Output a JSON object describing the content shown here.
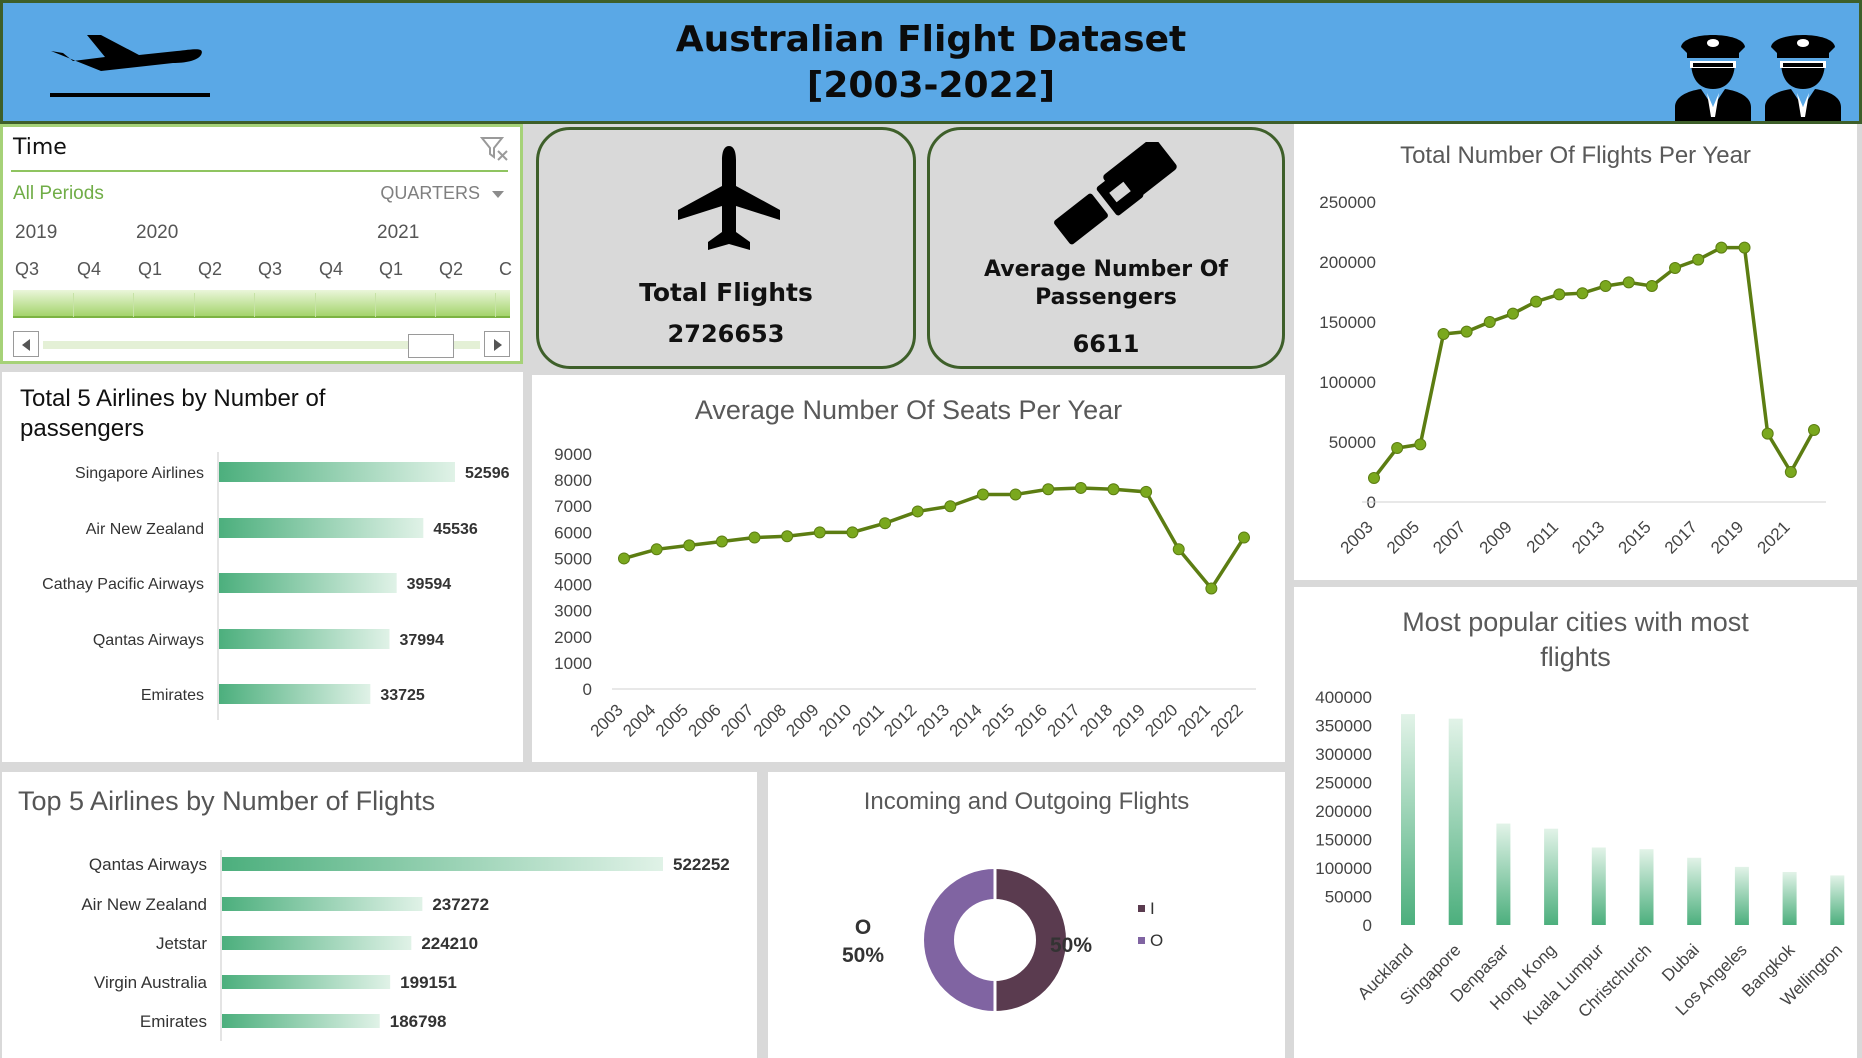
{
  "header": {
    "title_line1": "Australian Flight Dataset",
    "title_line2": "[2003-2022]",
    "plane_icon": "airplane-departure-icon",
    "pilot_icon": "pilot-icon"
  },
  "slicer": {
    "title": "Time",
    "all_periods": "All Periods",
    "level": "QUARTERS",
    "years": [
      "2019",
      "2020",
      "2021"
    ],
    "quarters": [
      "Q3",
      "Q4",
      "Q1",
      "Q2",
      "Q3",
      "Q4",
      "Q1",
      "Q2",
      "C"
    ]
  },
  "kpis": {
    "total_flights_label": "Total Flights",
    "total_flights_value": "2726653",
    "avg_passengers_label_line1": "Average Number Of",
    "avg_passengers_label_line2": "Passengers",
    "avg_passengers_value": "6611",
    "colors": {
      "card": "#d9d9d9",
      "border": "#3e5f2a"
    }
  },
  "chart_data": [
    {
      "id": "flights-per-year",
      "type": "line",
      "title": "Total Number Of Flights Per Year",
      "x": [
        "2003",
        "2004",
        "2005",
        "2006",
        "2007",
        "2008",
        "2009",
        "2010",
        "2011",
        "2012",
        "2013",
        "2014",
        "2015",
        "2016",
        "2017",
        "2018",
        "2019",
        "2020",
        "2021",
        "2022"
      ],
      "x_tick_labels": [
        "2003",
        "2005",
        "2007",
        "2009",
        "2011",
        "2013",
        "2015",
        "2017",
        "2019",
        "2021"
      ],
      "values": [
        20000,
        45000,
        48000,
        140000,
        142000,
        150000,
        157000,
        167000,
        173000,
        174000,
        180000,
        183000,
        180000,
        195000,
        202000,
        212000,
        212000,
        57000,
        25000,
        60000
      ],
      "ylim": [
        0,
        250000
      ],
      "yticks": [
        0,
        50000,
        100000,
        150000,
        200000,
        250000
      ],
      "ytick_labels": [
        "0",
        "50000",
        "100000",
        "150000",
        "200000",
        "250000"
      ],
      "color": "#5c7d12"
    },
    {
      "id": "avg-seats-per-year",
      "type": "line",
      "title": "Average Number Of Seats Per Year",
      "x": [
        "2003",
        "2004",
        "2005",
        "2006",
        "2007",
        "2008",
        "2009",
        "2010",
        "2011",
        "2012",
        "2013",
        "2014",
        "2015",
        "2016",
        "2017",
        "2018",
        "2019",
        "2020",
        "2021",
        "2022"
      ],
      "values": [
        5000,
        5350,
        5500,
        5650,
        5800,
        5850,
        6000,
        6000,
        6350,
        6800,
        7000,
        7450,
        7450,
        7650,
        7700,
        7650,
        7550,
        5350,
        3850,
        5800
      ],
      "ylim": [
        0,
        9000
      ],
      "yticks": [
        0,
        1000,
        2000,
        3000,
        4000,
        5000,
        6000,
        7000,
        8000,
        9000
      ],
      "ytick_labels": [
        "0",
        "1000",
        "2000",
        "3000",
        "4000",
        "5000",
        "6000",
        "7000",
        "8000",
        "9000"
      ],
      "color": "#5c7d12"
    },
    {
      "id": "top5-airlines-passengers",
      "type": "bar",
      "orientation": "horizontal",
      "title": "Total 5 Airlines by Number of passengers",
      "title_line1": "Total 5 Airlines by Number of",
      "title_line2": "passengers",
      "categories": [
        "Singapore Airlines",
        "Air New Zealand",
        "Cathay Pacific Airways",
        "Qantas Airways",
        "Emirates"
      ],
      "values": [
        52596,
        45536,
        39594,
        37994,
        33725
      ],
      "value_labels": [
        "52596",
        "45536",
        "39594",
        "37994",
        "33725"
      ],
      "color": "#4caf7d"
    },
    {
      "id": "top5-airlines-flights",
      "type": "bar",
      "orientation": "horizontal",
      "title": "Top 5 Airlines by Number of Flights",
      "categories": [
        "Qantas Airways",
        "Air New Zealand",
        "Jetstar",
        "Virgin Australia",
        "Emirates"
      ],
      "values": [
        522252,
        237272,
        224210,
        199151,
        186798
      ],
      "value_labels": [
        "522252",
        "237272",
        "224210",
        "199151",
        "186798"
      ],
      "color": "#4caf7d"
    },
    {
      "id": "incoming-outgoing",
      "type": "pie",
      "title": "Incoming and Outgoing Flights",
      "categories": [
        "I",
        "O"
      ],
      "values": [
        50,
        50
      ],
      "labels": [
        "50%",
        "50%"
      ],
      "slice_callout": "O",
      "colors": [
        "#5a3b4f",
        "#8064a2"
      ],
      "legend": "right"
    },
    {
      "id": "popular-cities",
      "type": "bar",
      "title": "Most popular cities with most flights",
      "title_line1": "Most popular cities with most",
      "title_line2": "flights",
      "categories": [
        "Auckland",
        "Singapore",
        "Denpasar",
        "Hong Kong",
        "Kuala Lumpur",
        "Christchurch",
        "Dubai",
        "Los Angeles",
        "Bangkok",
        "Wellington"
      ],
      "values": [
        370000,
        362000,
        178000,
        169000,
        136000,
        133000,
        118000,
        102000,
        93000,
        87000
      ],
      "ylim": [
        0,
        400000
      ],
      "yticks": [
        0,
        50000,
        100000,
        150000,
        200000,
        250000,
        300000,
        350000,
        400000
      ],
      "ytick_labels": [
        "0",
        "50000",
        "100000",
        "150000",
        "200000",
        "250000",
        "300000",
        "350000",
        "400000"
      ],
      "color": "#4caf7d"
    }
  ]
}
